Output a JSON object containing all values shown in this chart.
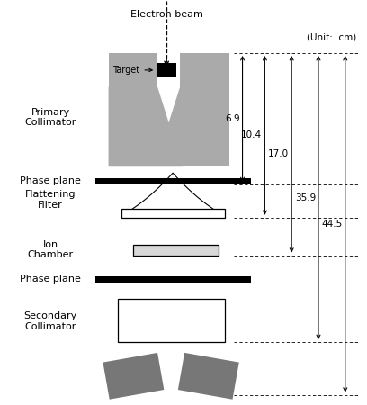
{
  "background_color": "#ffffff",
  "fig_width": 4.08,
  "fig_height": 4.5,
  "dpi": 100,
  "gray_color": "#aaaaaa",
  "dark_gray": "#777777",
  "labels": {
    "electron_beam": "Electron beam",
    "target": "Target",
    "primary_collimator": "Primary\nCollimator",
    "phase_plane1": "Phase plane",
    "flattening_filter": "Flattening\nFilter",
    "ion_chamber": "Ion\nChamber",
    "phase_plane2": "Phase plane",
    "secondary_collimator": "Secondary\nCollimator",
    "unit": "(Unit:  cm)"
  },
  "dimensions": {
    "d1": "6.9",
    "d2": "10.4",
    "d3": "17.0",
    "d4": "35.9",
    "d5": "44.5"
  }
}
